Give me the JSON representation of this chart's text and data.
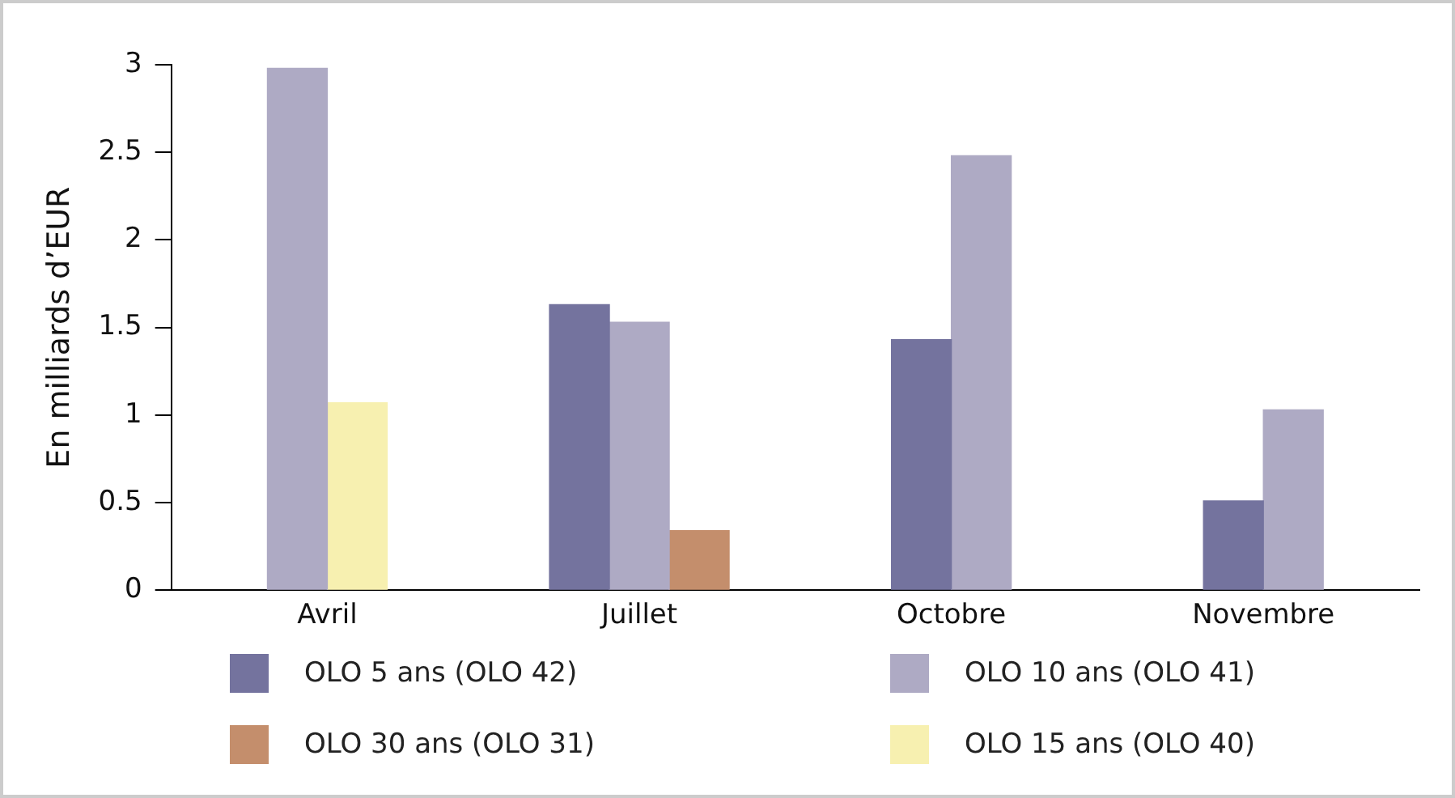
{
  "chart_data": {
    "type": "bar",
    "ylabel": "En milliards d’EUR",
    "categories": [
      "Avril",
      "Juillet",
      "Octobre",
      "Novembre"
    ],
    "series": [
      {
        "name": "OLO 5 ans (OLO 42)",
        "color": "#74739e",
        "values": [
          null,
          1.63,
          1.43,
          0.51
        ]
      },
      {
        "name": "OLO 10 ans (OLO 41)",
        "color": "#aeaac4",
        "values": [
          2.98,
          1.53,
          2.48,
          1.03
        ]
      },
      {
        "name": "OLO 30 ans (OLO 31)",
        "color": "#c48e6c",
        "values": [
          null,
          0.34,
          null,
          null
        ]
      },
      {
        "name": "OLO 15 ans (OLO 40)",
        "color": "#f7f0b0",
        "values": [
          1.07,
          null,
          null,
          null
        ]
      }
    ],
    "ylim": [
      0,
      3
    ],
    "yticks": [
      0,
      0.5,
      1,
      1.5,
      2,
      2.5,
      3
    ],
    "grid": false,
    "legend": "bottom"
  }
}
